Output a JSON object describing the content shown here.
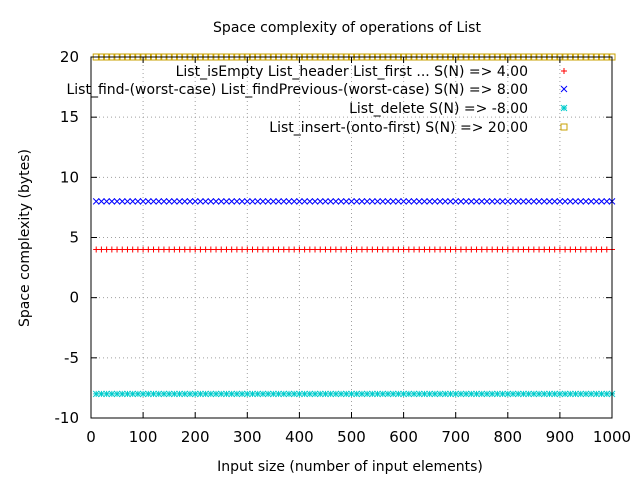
{
  "chart_data": {
    "type": "scatter",
    "title": "Space complexity of operations of List",
    "xlabel": "Input size (number of input elements)",
    "ylabel": "Space complexity (bytes)",
    "xlim": [
      0,
      1000
    ],
    "ylim": [
      -10,
      20
    ],
    "x_ticks": [
      "0",
      "100",
      "200",
      "300",
      "400",
      "500",
      "600",
      "700",
      "800",
      "900",
      "1000"
    ],
    "y_ticks": [
      "-10",
      "-5",
      "0",
      "5",
      "10",
      "15",
      "20"
    ],
    "grid": true,
    "legend_position": "top-right",
    "x_sampling": {
      "start": 10,
      "end": 1000,
      "step": 10
    },
    "series": [
      {
        "name": "List_isEmpty List_header List_first ... S(N) => 4.00",
        "y": 4,
        "marker": "plus",
        "color": "#ff0000"
      },
      {
        "name": "List_find-(worst-case) List_findPrevious-(worst-case) S(N) => 8.00",
        "y": 8,
        "marker": "cross",
        "color": "#0000ff"
      },
      {
        "name": "List_delete S(N) => -8.00",
        "y": -8,
        "marker": "star",
        "color": "#00cccc"
      },
      {
        "name": "List_insert-(onto-first) S(N) => 20.00",
        "y": 20,
        "marker": "square",
        "color": "#c8a000"
      }
    ]
  }
}
